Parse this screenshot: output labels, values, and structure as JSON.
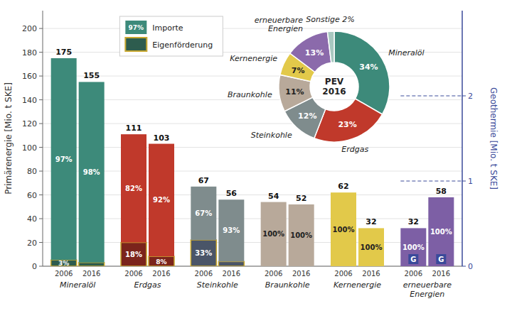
{
  "chart_data": [
    {
      "type": "bar",
      "stacked": true,
      "groups": [
        "Mineralöl",
        "Erdgas",
        "Steinkohle",
        "Braunkohle",
        "Kernenergie",
        "erneuerbare\nEnergien"
      ],
      "categories": [
        "2006",
        "2016",
        "2006",
        "2016",
        "2006",
        "2016",
        "2006",
        "2016",
        "2006",
        "2016",
        "2006",
        "2016"
      ],
      "totals": [
        175,
        155,
        111,
        103,
        67,
        56,
        54,
        52,
        62,
        32,
        32,
        58
      ],
      "series": [
        {
          "name": "Eigenförderung",
          "color": "#c8a830",
          "colors": [
            "#2d5c4e",
            "#2d5c4e",
            "#7b241c",
            "#7b241c",
            "#4a5568",
            "#4a5568",
            "#b8a99a",
            "#b8a99a",
            "#e2c94a",
            "#e2c94a",
            "#7d5fa5",
            "#7d5fa5"
          ],
          "values": [
            3,
            2,
            18,
            8,
            33,
            7,
            0,
            0,
            0,
            0,
            0,
            0
          ],
          "value_labels": [
            "3%",
            null,
            "18%",
            "8%",
            "33%",
            null,
            null,
            null,
            null,
            null,
            null,
            null
          ]
        },
        {
          "name": "Importe",
          "colors": [
            "#3d8a7a",
            "#3d8a7a",
            "#c0392b",
            "#c0392b",
            "#7f8c8d",
            "#7f8c8d",
            "#b8a99a",
            "#b8a99a",
            "#e2c94a",
            "#e2c94a",
            "#7d5fa5",
            "#7d5fa5"
          ],
          "values": [
            97,
            98,
            82,
            92,
            67,
            93,
            100,
            100,
            100,
            100,
            100,
            100
          ],
          "value_labels": [
            "97%",
            "98%",
            "82%",
            "92%",
            "67%",
            "93%",
            "100%",
            "100%",
            "100%",
            "100%",
            "100%",
            "100%"
          ]
        }
      ],
      "data_labels": true,
      "ylabel": "Primärenergie [Mio. t SKE]",
      "ylim": [
        0,
        215
      ],
      "yticks": [
        0,
        20,
        40,
        60,
        80,
        100,
        120,
        140,
        160,
        180,
        200
      ],
      "y2label": "Geothermie [Mio. t SKE]",
      "y2lim": [
        0,
        3
      ],
      "y2ticks": [
        0,
        1,
        2
      ],
      "grid": true,
      "legend": "upper left",
      "annotations": [
        {
          "text": "G",
          "color": "#3a4a9a"
        },
        {
          "text": "G",
          "color": "#3a4a9a"
        }
      ]
    },
    {
      "type": "pie",
      "categories": [
        "Mineralöl",
        "Erdgas",
        "Steinkohle",
        "Braunkohle",
        "Kernenergie",
        "erneuerbare\nEnergien",
        "Sonstige 2%"
      ],
      "values": [
        34,
        23,
        12,
        11,
        7,
        13,
        2
      ],
      "value_labels": [
        "34%",
        "23%",
        "12%",
        "11%",
        "7%",
        "13%",
        null
      ],
      "colors": [
        "#3d8a7a",
        "#c0392b",
        "#7f8c8d",
        "#b8a99a",
        "#e2c94a",
        "#8b6aab",
        "#a8c8c0"
      ],
      "data_labels": true,
      "annotations": [
        "PEV\n2016"
      ]
    }
  ]
}
